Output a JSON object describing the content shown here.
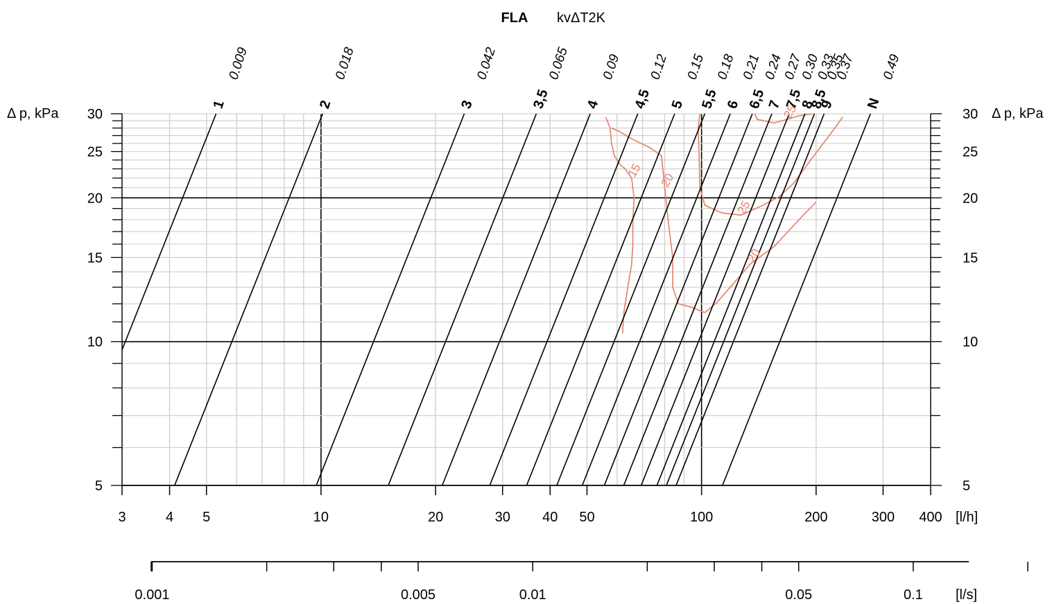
{
  "chart_data": {
    "type": "line",
    "title": "FLA",
    "subtitle": "kvΔT2K",
    "ylabel": "Δ p, kPa",
    "xlabel": "[l/h]",
    "x2label": "[l/s]",
    "x_scale": "log",
    "y_scale": "log",
    "xlim": [
      3,
      400
    ],
    "ylim": [
      5,
      30
    ],
    "x_ticks": [
      3,
      4,
      5,
      10,
      20,
      30,
      40,
      50,
      100,
      200,
      300,
      400
    ],
    "x_minor_ticks": [
      6,
      7,
      8,
      9,
      60,
      70,
      80,
      90
    ],
    "y_ticks": [
      5,
      10,
      15,
      20,
      25,
      30
    ],
    "y_minor_ticks": [
      6,
      7,
      8,
      9,
      11,
      12,
      13,
      14,
      16,
      17,
      18,
      19,
      21,
      22,
      23,
      24,
      26,
      27,
      28,
      29
    ],
    "x2_ticks": [
      0.001,
      0.002,
      0.003,
      0.004,
      0.005,
      0.01,
      0.02,
      0.03,
      0.04,
      0.05,
      0.1,
      0.2
    ],
    "x2_tick_labels": [
      {
        "value": 0.001,
        "label": "0.001"
      },
      {
        "value": 0.005,
        "label": "0.005"
      },
      {
        "value": 0.01,
        "label": "0.01"
      },
      {
        "value": 0.05,
        "label": "0.05"
      },
      {
        "value": 0.1,
        "label": "0.1"
      }
    ],
    "grid": true,
    "bold_reference_lines": {
      "x": [
        10,
        100
      ],
      "y": [
        10,
        20
      ]
    },
    "series_color": "#000000",
    "contour_color": "#e3866c",
    "grid_color": "#d0d0d0",
    "settings": [
      {
        "name": "1",
        "kv": "0.009",
        "x_at_30": 5.3
      },
      {
        "name": "2",
        "kv": "0.018",
        "x_at_30": 10.1
      },
      {
        "name": "3",
        "kv": "0.042",
        "x_at_30": 23.8
      },
      {
        "name": "3,5",
        "kv": "0.065",
        "x_at_30": 36.8
      },
      {
        "name": "4",
        "kv": "0.09",
        "x_at_30": 51
      },
      {
        "name": "4,5",
        "kv": "0.12",
        "x_at_30": 68
      },
      {
        "name": "5",
        "kv": "0.15",
        "x_at_30": 85
      },
      {
        "name": "5,5",
        "kv": "0.18",
        "x_at_30": 102
      },
      {
        "name": "6",
        "kv": "0.21",
        "x_at_30": 119
      },
      {
        "name": "6,5",
        "kv": "0.24",
        "x_at_30": 136
      },
      {
        "name": "7",
        "kv": "0.27",
        "x_at_30": 153
      },
      {
        "name": "7,5",
        "kv": "0.30",
        "x_at_30": 170
      },
      {
        "name": "8",
        "kv": "0.33",
        "x_at_30": 187
      },
      {
        "name": "8,5",
        "kv": "0.35",
        "x_at_30": 198
      },
      {
        "name": "9",
        "kv": "0.37",
        "x_at_30": 210
      },
      {
        "name": "N",
        "kv": "0.49",
        "x_at_30": 278
      }
    ],
    "contours": [
      {
        "label": "15",
        "points": [
          [
            62,
            10.4
          ],
          [
            62.5,
            11.5
          ],
          [
            64,
            13
          ],
          [
            65.5,
            14.5
          ],
          [
            66,
            16
          ],
          [
            66,
            18
          ],
          [
            66.5,
            20
          ],
          [
            65.5,
            22
          ],
          [
            63,
            23
          ],
          [
            61,
            23.5
          ],
          [
            59,
            24.5
          ],
          [
            58,
            26
          ],
          [
            57.5,
            28
          ],
          [
            56,
            29.5
          ]
        ]
      },
      {
        "label": "20",
        "points": [
          [
            102,
            11.5
          ],
          [
            94,
            11.8
          ],
          [
            87,
            12
          ],
          [
            84,
            13
          ],
          [
            84,
            15
          ],
          [
            82,
            17.5
          ],
          [
            80,
            21
          ],
          [
            78.5,
            24.5
          ],
          [
            73,
            25.5
          ],
          [
            66,
            26.5
          ],
          [
            61,
            27.5
          ],
          [
            58,
            28
          ]
        ]
      },
      {
        "label": "20",
        "points": [
          [
            102,
            11.5
          ],
          [
            110,
            12.1
          ],
          [
            122,
            13.3
          ],
          [
            135,
            14.6
          ],
          [
            155,
            15.8
          ],
          [
            178,
            17.8
          ],
          [
            200,
            19.6
          ]
        ]
      },
      {
        "label": "25",
        "points": [
          [
            99,
            30
          ],
          [
            98,
            28
          ],
          [
            98.5,
            25
          ],
          [
            99,
            21
          ],
          [
            102,
            19.3
          ],
          [
            113,
            18.6
          ],
          [
            127,
            18.4
          ],
          [
            143,
            19.2
          ],
          [
            160,
            20.1
          ],
          [
            175,
            21.5
          ],
          [
            195,
            24.2
          ],
          [
            218,
            27.2
          ],
          [
            235,
            29.5
          ]
        ]
      },
      {
        "label": "25",
        "points": [
          [
            138,
            30
          ],
          [
            140,
            29.2
          ],
          [
            155,
            28.7
          ],
          [
            168,
            29.2
          ],
          [
            180,
            29.7
          ],
          [
            196,
            30
          ]
        ]
      }
    ]
  }
}
